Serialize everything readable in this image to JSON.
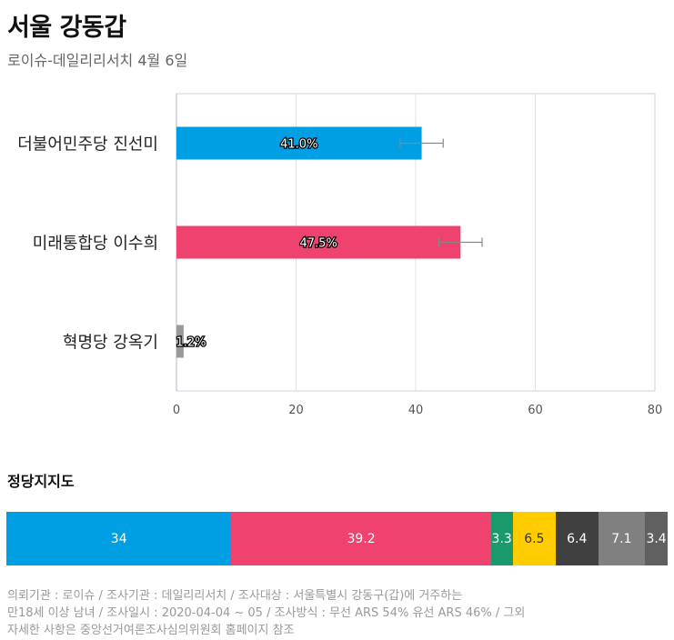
{
  "header": {
    "title": "서울 강동갑",
    "subtitle": "로이슈-데일리리서치 4월 6일"
  },
  "chart_data": [
    {
      "type": "bar",
      "orientation": "horizontal",
      "categories": [
        "더불어민주당 진선미",
        "미래통합당 이수희",
        "혁명당 강옥기"
      ],
      "values": [
        41.0,
        47.5,
        1.2
      ],
      "labels": [
        "41.0%",
        "47.5%",
        "1.2%"
      ],
      "error_margin": 3.6,
      "colors": [
        "#009fe3",
        "#ef426f",
        "#999999"
      ],
      "xlim": [
        0,
        80
      ],
      "xticks": [
        0,
        20,
        40,
        60,
        80
      ],
      "grid": true
    },
    {
      "type": "bar",
      "orientation": "stacked-horizontal",
      "title": "정당지지도",
      "values": [
        34,
        39.2,
        3.3,
        6.5,
        6.4,
        7.1,
        3.4
      ],
      "labels": [
        "34",
        "39.2",
        "3.3",
        "6.5",
        "6.4",
        "7.1",
        "3.4"
      ],
      "colors": [
        "#009fe3",
        "#ef426f",
        "#1a9a6b",
        "#ffcc00",
        "#404040",
        "#808080",
        "#606060"
      ],
      "label_colors": [
        "#ffffff",
        "#ffffff",
        "#ffffff",
        "#333333",
        "#ffffff",
        "#ffffff",
        "#ffffff"
      ]
    }
  ],
  "footnote": {
    "line1": "의뢰기관 : 로이슈 / 조사기관 : 데일리리서치 / 조사대상 : 서울특별시 강동구(갑)에 거주하는",
    "line2": "만18세 이상 남녀 / 조사일시 : 2020-04-04 ~ 05 / 조사방식 : 무선 ARS 54% 유선 ARS 46% / 그외",
    "line3": "자세한 사항은 중앙선거여론조사심의위원회 홈페이지 참조"
  }
}
